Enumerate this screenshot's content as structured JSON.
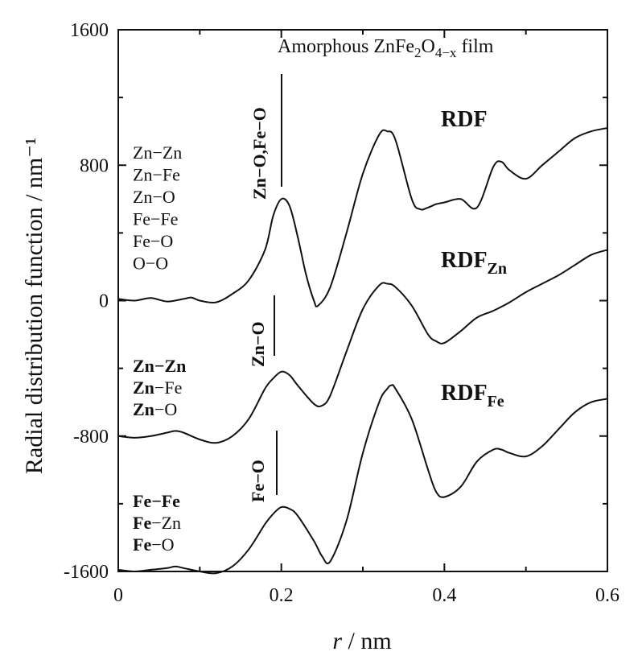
{
  "chart_data": {
    "type": "line",
    "title": "Amorphous ZnFe₂O₄₋ₓ film",
    "xlabel_italic": "r",
    "xlabel_unit": " / nm",
    "ylabel": "Radial distribution function / nm⁻¹",
    "xlim": [
      0,
      0.6
    ],
    "ylim": [
      -1600,
      1600
    ],
    "x_ticks": [
      "0",
      "0.2",
      "0.4",
      "0.6"
    ],
    "x_tick_values": [
      0,
      0.2,
      0.4,
      0.6
    ],
    "y_ticks": [
      "1600",
      "800",
      "0",
      "-800",
      "-1600"
    ],
    "y_tick_values": [
      1600,
      800,
      0,
      -800,
      -1600
    ],
    "grid": false,
    "series": [
      {
        "name": "RDF",
        "label_main": "RDF",
        "label_sub": "",
        "x": [
          0,
          0.02,
          0.04,
          0.06,
          0.08,
          0.09,
          0.1,
          0.12,
          0.14,
          0.16,
          0.18,
          0.19,
          0.2,
          0.21,
          0.22,
          0.23,
          0.24,
          0.245,
          0.26,
          0.28,
          0.3,
          0.32,
          0.33,
          0.34,
          0.36,
          0.37,
          0.38,
          0.39,
          0.4,
          0.42,
          0.44,
          0.46,
          0.47,
          0.48,
          0.5,
          0.52,
          0.54,
          0.56,
          0.58,
          0.6
        ],
        "y": [
          10,
          0,
          15,
          -5,
          10,
          18,
          0,
          -10,
          40,
          120,
          300,
          500,
          600,
          560,
          380,
          160,
          0,
          -30,
          80,
          400,
          750,
          980,
          1000,
          950,
          600,
          540,
          550,
          570,
          580,
          600,
          550,
          790,
          820,
          770,
          720,
          800,
          880,
          960,
          1000,
          1020
        ]
      },
      {
        "name": "RDFZn",
        "label_main": "RDF",
        "label_sub": "Zn",
        "x": [
          0,
          0.02,
          0.04,
          0.06,
          0.07,
          0.08,
          0.1,
          0.12,
          0.14,
          0.16,
          0.18,
          0.19,
          0.2,
          0.21,
          0.22,
          0.24,
          0.25,
          0.26,
          0.28,
          0.3,
          0.32,
          0.33,
          0.34,
          0.36,
          0.38,
          0.39,
          0.4,
          0.42,
          0.44,
          0.46,
          0.48,
          0.5,
          0.52,
          0.54,
          0.56,
          0.58,
          0.6
        ],
        "y": [
          -800,
          -810,
          -800,
          -780,
          -770,
          -780,
          -820,
          -840,
          -800,
          -700,
          -520,
          -460,
          -420,
          -440,
          -500,
          -610,
          -620,
          -560,
          -300,
          -50,
          90,
          100,
          80,
          -30,
          -200,
          -240,
          -250,
          -180,
          -100,
          -60,
          -10,
          50,
          100,
          150,
          210,
          270,
          300
        ]
      },
      {
        "name": "RDFFe",
        "label_main": "RDF",
        "label_sub": "Fe",
        "x": [
          0,
          0.02,
          0.04,
          0.06,
          0.07,
          0.08,
          0.1,
          0.12,
          0.14,
          0.16,
          0.18,
          0.19,
          0.2,
          0.21,
          0.22,
          0.24,
          0.25,
          0.26,
          0.28,
          0.3,
          0.32,
          0.33,
          0.335,
          0.34,
          0.36,
          0.38,
          0.39,
          0.4,
          0.42,
          0.44,
          0.46,
          0.47,
          0.48,
          0.5,
          0.52,
          0.54,
          0.56,
          0.58,
          0.6
        ],
        "y": [
          -1590,
          -1600,
          -1590,
          -1580,
          -1570,
          -1580,
          -1600,
          -1610,
          -1570,
          -1470,
          -1320,
          -1260,
          -1220,
          -1230,
          -1270,
          -1420,
          -1510,
          -1540,
          -1300,
          -900,
          -600,
          -520,
          -500,
          -520,
          -700,
          -1000,
          -1130,
          -1160,
          -1100,
          -950,
          -880,
          -880,
          -900,
          -920,
          -860,
          -760,
          -660,
          -600,
          -580
        ]
      }
    ]
  },
  "annotations": {
    "vline_zno_feo_label": "Zn−O,Fe−O",
    "vline_zno_label": "Zn−O",
    "vline_feo_label": "Fe−O",
    "rdf_pairs": [
      "Zn−Zn",
      "Zn−Fe",
      "Zn−O",
      "Fe−Fe",
      "Fe−O",
      "O−O"
    ],
    "rdfzn_pairs": [
      {
        "bold": "Zn",
        "rest": "−Zn",
        "rest_bold": true
      },
      {
        "bold": "Zn",
        "rest": "−Fe",
        "rest_bold": false
      },
      {
        "bold": "Zn",
        "rest": "−O",
        "rest_bold": false
      }
    ],
    "rdffe_pairs": [
      {
        "bold": "Fe",
        "rest": "−Fe",
        "rest_bold": true
      },
      {
        "bold": "Fe",
        "rest": "−Zn",
        "rest_bold": false
      },
      {
        "bold": "Fe",
        "rest": "−O",
        "rest_bold": false
      }
    ]
  }
}
